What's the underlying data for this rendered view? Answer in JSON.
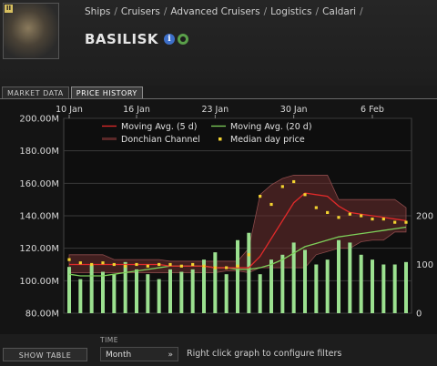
{
  "header": {
    "thumbnail_badge": "II",
    "breadcrumb": [
      "Ships",
      "Cruisers",
      "Advanced Cruisers",
      "Logistics",
      "Caldari"
    ],
    "breadcrumb_trailing_sep": "/",
    "title": "BASILISK",
    "info_icon_label": "i"
  },
  "tabs": [
    {
      "label": "MARKET DATA",
      "active": false
    },
    {
      "label": "PRICE HISTORY",
      "active": true
    }
  ],
  "footer": {
    "show_table_label": "SHOW TABLE",
    "time_label": "TIME",
    "time_value": "Month",
    "hint": "Right click graph to configure filters"
  },
  "colors": {
    "ma5": "#e02a2a",
    "ma20": "#7ed05a",
    "donchian": "#6b2e2e",
    "median": "#f2d230",
    "volume": "#9be08f"
  },
  "chart_data": {
    "type": "line",
    "x": [
      "10 Jan",
      "11 Jan",
      "12 Jan",
      "13 Jan",
      "14 Jan",
      "15 Jan",
      "16 Jan",
      "17 Jan",
      "18 Jan",
      "19 Jan",
      "20 Jan",
      "21 Jan",
      "22 Jan",
      "23 Jan",
      "24 Jan",
      "25 Jan",
      "26 Jan",
      "27 Jan",
      "28 Jan",
      "29 Jan",
      "30 Jan",
      "31 Jan",
      "1 Feb",
      "2 Feb",
      "3 Feb",
      "4 Feb",
      "5 Feb",
      "6 Feb",
      "7 Feb",
      "8 Feb",
      "9 Feb"
    ],
    "x_ticks": [
      "10 Jan",
      "16 Jan",
      "23 Jan",
      "30 Jan",
      "6 Feb"
    ],
    "y_ticks": [
      "200.00M",
      "180.00M",
      "160.00M",
      "140.00M",
      "120.00M",
      "100.00M",
      "80.00M"
    ],
    "ylim": [
      80,
      200
    ],
    "y2_ticks": [
      "200",
      "100",
      "0"
    ],
    "y2lim": [
      0,
      400
    ],
    "legend": [
      {
        "key": "ma5",
        "label": "Moving Avg. (5 d)"
      },
      {
        "key": "ma20",
        "label": "Moving Avg. (20 d)"
      },
      {
        "key": "donchian",
        "label": "Donchian Channel"
      },
      {
        "key": "median",
        "label": "Median day price"
      }
    ],
    "series": [
      {
        "name": "Median day price",
        "values": [
          113,
          111,
          110,
          111,
          110,
          109,
          110,
          109,
          110,
          110,
          109,
          110,
          109,
          108,
          108,
          109,
          116,
          152,
          147,
          158,
          161,
          153,
          145,
          142,
          139,
          141,
          140,
          138,
          138,
          136,
          136
        ]
      },
      {
        "name": "Moving Avg. (5 d)",
        "values": [
          110,
          110,
          110,
          110,
          110,
          110,
          110,
          110,
          110,
          109,
          109,
          109,
          109,
          108,
          108,
          108,
          108,
          115,
          126,
          137,
          148,
          154,
          153,
          152,
          146,
          142,
          141,
          140,
          139,
          138,
          137
        ]
      },
      {
        "name": "Moving Avg. (20 d)",
        "values": [
          104,
          103,
          103,
          103,
          104,
          105,
          106,
          107,
          108,
          109,
          109,
          109,
          109,
          108,
          108,
          107,
          107,
          108,
          110,
          113,
          117,
          121,
          123,
          125,
          127,
          128,
          129,
          130,
          131,
          132,
          133
        ]
      },
      {
        "name": "Donchian Channel upper",
        "values": [
          116,
          116,
          116,
          116,
          113,
          113,
          113,
          113,
          113,
          112,
          112,
          112,
          112,
          112,
          112,
          112,
          120,
          153,
          159,
          163,
          165,
          165,
          165,
          165,
          150,
          150,
          150,
          150,
          150,
          150,
          145
        ]
      },
      {
        "name": "Donchian Channel lower",
        "values": [
          105,
          105,
          105,
          105,
          105,
          105,
          105,
          105,
          105,
          105,
          105,
          105,
          105,
          105,
          106,
          106,
          105,
          108,
          108,
          108,
          108,
          108,
          116,
          118,
          120,
          120,
          124,
          125,
          125,
          130,
          130
        ]
      },
      {
        "name": "Volume",
        "values": [
          95,
          70,
          100,
          85,
          80,
          105,
          90,
          80,
          70,
          90,
          85,
          90,
          110,
          125,
          80,
          150,
          165,
          80,
          110,
          120,
          145,
          130,
          100,
          110,
          150,
          145,
          120,
          110,
          100,
          100,
          105
        ]
      }
    ]
  }
}
